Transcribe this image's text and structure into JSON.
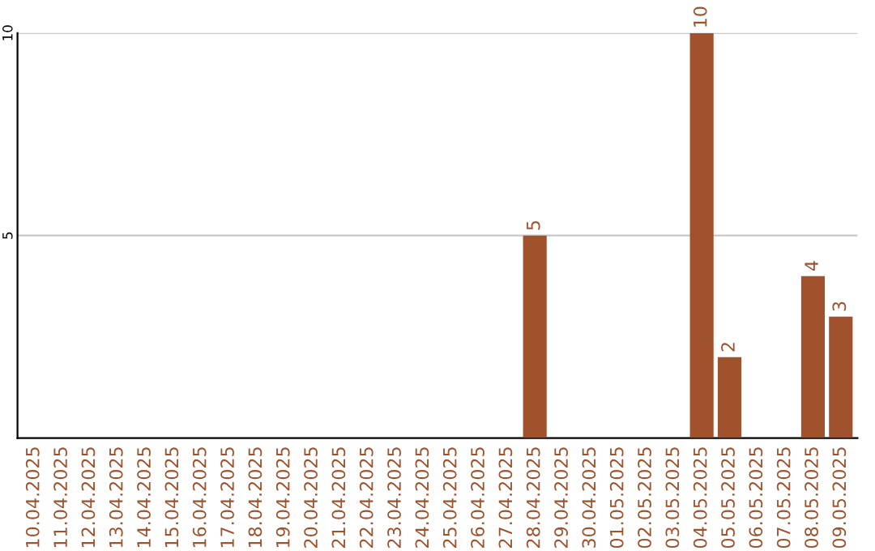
{
  "chart_data": {
    "type": "bar",
    "categories": [
      "10.04.2025",
      "11.04.2025",
      "12.04.2025",
      "13.04.2025",
      "14.04.2025",
      "15.04.2025",
      "16.04.2025",
      "17.04.2025",
      "18.04.2025",
      "19.04.2025",
      "20.04.2025",
      "21.04.2025",
      "22.04.2025",
      "23.04.2025",
      "24.04.2025",
      "25.04.2025",
      "26.04.2025",
      "27.04.2025",
      "28.04.2025",
      "29.04.2025",
      "30.04.2025",
      "01.05.2025",
      "02.05.2025",
      "03.05.2025",
      "04.05.2025",
      "05.05.2025",
      "06.05.2025",
      "07.05.2025",
      "08.05.2025",
      "09.05.2025"
    ],
    "values": [
      0,
      0,
      0,
      0,
      0,
      0,
      0,
      0,
      0,
      0,
      0,
      0,
      0,
      0,
      0,
      0,
      0,
      0,
      5,
      0,
      0,
      0,
      0,
      0,
      10,
      2,
      0,
      0,
      4,
      3
    ],
    "value_labels": [
      null,
      null,
      null,
      null,
      null,
      null,
      null,
      null,
      null,
      null,
      null,
      null,
      null,
      null,
      null,
      null,
      null,
      null,
      "5",
      null,
      null,
      null,
      null,
      null,
      "10",
      "2",
      null,
      null,
      "4",
      "3"
    ],
    "color": "#a0522d",
    "ylim": [
      0,
      10
    ],
    "yticks": [
      5,
      10
    ],
    "grid": "y",
    "legend": false
  }
}
